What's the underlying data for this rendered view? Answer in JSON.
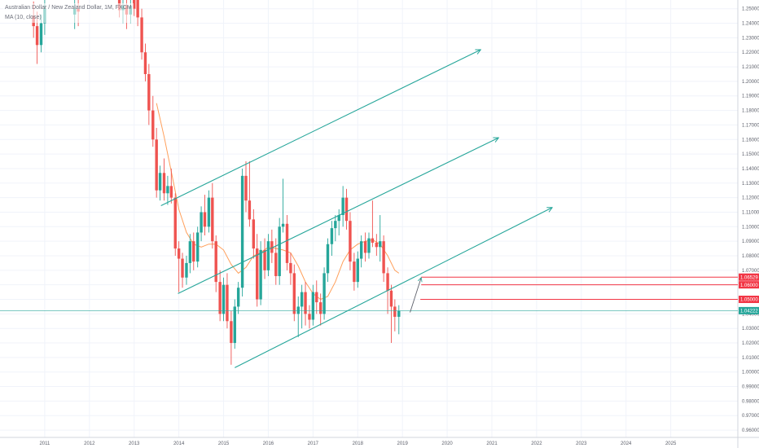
{
  "legend": {
    "symbol_line": "Australian Dollar / New Zealand Dollar, 1M, FXCM",
    "ma_line": "MA (10, close)"
  },
  "colors": {
    "up": "#26a69a",
    "down": "#ef5350",
    "ma": "#ff9f5a",
    "channel": "#26a69a",
    "last_price": "#26a69a",
    "level": "#f23645",
    "grid": "#f0f3fa",
    "axis_text": "#5d606b"
  },
  "chart_data": {
    "type": "candlestick",
    "title": "Australian Dollar / New Zealand Dollar, 1M, FXCM",
    "xlabel": "",
    "ylabel": "",
    "ylim": [
      0.955,
      1.256
    ],
    "xlim": [
      2010.0,
      2026.5
    ],
    "grid": true,
    "x_ticks": [
      2011,
      2012,
      2013,
      2014,
      2015,
      2016,
      2017,
      2018,
      2019,
      2020,
      2021,
      2022,
      2023,
      2024,
      2025
    ],
    "x_tick_labels": [
      "2011",
      "2012",
      "2013",
      "2014",
      "2015",
      "2016",
      "2017",
      "2018",
      "2019",
      "2020",
      "2021",
      "2022",
      "2023",
      "2024",
      "2025"
    ],
    "y_ticks": [
      0.96,
      0.97,
      0.98,
      0.99,
      1.0,
      1.01,
      1.02,
      1.03,
      1.04,
      1.05,
      1.06,
      1.07,
      1.08,
      1.09,
      1.1,
      1.11,
      1.12,
      1.13,
      1.14,
      1.15,
      1.16,
      1.17,
      1.18,
      1.19,
      1.2,
      1.21,
      1.22,
      1.23,
      1.24,
      1.25
    ],
    "y_tick_labels": [
      "0.96000",
      "0.97000",
      "0.98000",
      "0.99000",
      "1.00000",
      "1.01000",
      "1.02000",
      "1.03000",
      "1.04000",
      "1.05000",
      "1.06000",
      "1.07000",
      "1.08000",
      "1.09000",
      "1.10000",
      "1.11000",
      "1.12000",
      "1.13000",
      "1.14000",
      "1.15000",
      "1.16000",
      "1.17000",
      "1.18000",
      "1.19000",
      "1.20000",
      "1.21000",
      "1.22000",
      "1.23000",
      "1.24000",
      "1.25000"
    ],
    "candles": [
      {
        "t": 2010.75,
        "o": 1.245,
        "h": 1.255,
        "l": 1.23,
        "c": 1.238
      },
      {
        "t": 2010.83,
        "o": 1.238,
        "h": 1.248,
        "l": 1.212,
        "c": 1.225
      },
      {
        "t": 2010.92,
        "o": 1.225,
        "h": 1.246,
        "l": 1.22,
        "c": 1.24
      },
      {
        "t": 2011.0,
        "o": 1.24,
        "h": 1.256,
        "l": 1.232,
        "c": 1.25
      },
      {
        "t": 2011.67,
        "o": 1.246,
        "h": 1.256,
        "l": 1.236,
        "c": 1.25
      },
      {
        "t": 2011.75,
        "o": 1.25,
        "h": 1.256,
        "l": 1.238,
        "c": 1.248
      },
      {
        "t": 2012.67,
        "o": 1.256,
        "h": 1.256,
        "l": 1.244,
        "c": 1.249
      },
      {
        "t": 2012.75,
        "o": 1.249,
        "h": 1.256,
        "l": 1.24,
        "c": 1.252
      },
      {
        "t": 2012.83,
        "o": 1.252,
        "h": 1.256,
        "l": 1.236,
        "c": 1.246
      },
      {
        "t": 2012.92,
        "o": 1.246,
        "h": 1.256,
        "l": 1.24,
        "c": 1.252
      },
      {
        "t": 2013.0,
        "o": 1.256,
        "h": 1.256,
        "l": 1.245,
        "c": 1.25
      },
      {
        "t": 2013.08,
        "o": 1.256,
        "h": 1.256,
        "l": 1.238,
        "c": 1.244
      },
      {
        "t": 2013.17,
        "o": 1.244,
        "h": 1.25,
        "l": 1.215,
        "c": 1.22
      },
      {
        "t": 2013.25,
        "o": 1.22,
        "h": 1.226,
        "l": 1.2,
        "c": 1.205
      },
      {
        "t": 2013.33,
        "o": 1.205,
        "h": 1.212,
        "l": 1.17,
        "c": 1.18
      },
      {
        "t": 2013.42,
        "o": 1.18,
        "h": 1.19,
        "l": 1.155,
        "c": 1.16
      },
      {
        "t": 2013.5,
        "o": 1.16,
        "h": 1.168,
        "l": 1.12,
        "c": 1.125
      },
      {
        "t": 2013.58,
        "o": 1.125,
        "h": 1.142,
        "l": 1.118,
        "c": 1.137
      },
      {
        "t": 2013.67,
        "o": 1.137,
        "h": 1.147,
        "l": 1.118,
        "c": 1.123
      },
      {
        "t": 2013.75,
        "o": 1.123,
        "h": 1.135,
        "l": 1.115,
        "c": 1.128
      },
      {
        "t": 2013.83,
        "o": 1.128,
        "h": 1.14,
        "l": 1.116,
        "c": 1.12
      },
      {
        "t": 2013.92,
        "o": 1.12,
        "h": 1.123,
        "l": 1.08,
        "c": 1.085
      },
      {
        "t": 2014.0,
        "o": 1.085,
        "h": 1.09,
        "l": 1.055,
        "c": 1.078
      },
      {
        "t": 2014.08,
        "o": 1.078,
        "h": 1.082,
        "l": 1.058,
        "c": 1.065
      },
      {
        "t": 2014.17,
        "o": 1.065,
        "h": 1.08,
        "l": 1.06,
        "c": 1.075
      },
      {
        "t": 2014.25,
        "o": 1.075,
        "h": 1.095,
        "l": 1.068,
        "c": 1.09
      },
      {
        "t": 2014.33,
        "o": 1.09,
        "h": 1.096,
        "l": 1.07,
        "c": 1.076
      },
      {
        "t": 2014.42,
        "o": 1.076,
        "h": 1.1,
        "l": 1.072,
        "c": 1.096
      },
      {
        "t": 2014.5,
        "o": 1.096,
        "h": 1.114,
        "l": 1.09,
        "c": 1.11
      },
      {
        "t": 2014.58,
        "o": 1.11,
        "h": 1.122,
        "l": 1.094,
        "c": 1.1
      },
      {
        "t": 2014.67,
        "o": 1.1,
        "h": 1.125,
        "l": 1.096,
        "c": 1.12
      },
      {
        "t": 2014.75,
        "o": 1.12,
        "h": 1.13,
        "l": 1.085,
        "c": 1.09
      },
      {
        "t": 2014.83,
        "o": 1.09,
        "h": 1.094,
        "l": 1.055,
        "c": 1.062
      },
      {
        "t": 2014.92,
        "o": 1.062,
        "h": 1.07,
        "l": 1.035,
        "c": 1.04
      },
      {
        "t": 2015.0,
        "o": 1.04,
        "h": 1.065,
        "l": 1.035,
        "c": 1.06
      },
      {
        "t": 2015.08,
        "o": 1.06,
        "h": 1.068,
        "l": 1.03,
        "c": 1.035
      },
      {
        "t": 2015.17,
        "o": 1.035,
        "h": 1.042,
        "l": 1.005,
        "c": 1.02
      },
      {
        "t": 2015.25,
        "o": 1.02,
        "h": 1.05,
        "l": 1.016,
        "c": 1.045
      },
      {
        "t": 2015.33,
        "o": 1.045,
        "h": 1.062,
        "l": 1.04,
        "c": 1.058
      },
      {
        "t": 2015.42,
        "o": 1.058,
        "h": 1.14,
        "l": 1.052,
        "c": 1.135
      },
      {
        "t": 2015.5,
        "o": 1.135,
        "h": 1.145,
        "l": 1.11,
        "c": 1.118
      },
      {
        "t": 2015.58,
        "o": 1.118,
        "h": 1.145,
        "l": 1.1,
        "c": 1.105
      },
      {
        "t": 2015.67,
        "o": 1.105,
        "h": 1.112,
        "l": 1.078,
        "c": 1.085
      },
      {
        "t": 2015.75,
        "o": 1.085,
        "h": 1.095,
        "l": 1.045,
        "c": 1.05
      },
      {
        "t": 2015.83,
        "o": 1.05,
        "h": 1.09,
        "l": 1.046,
        "c": 1.084
      },
      {
        "t": 2015.92,
        "o": 1.084,
        "h": 1.092,
        "l": 1.064,
        "c": 1.07
      },
      {
        "t": 2016.0,
        "o": 1.07,
        "h": 1.095,
        "l": 1.066,
        "c": 1.09
      },
      {
        "t": 2016.08,
        "o": 1.09,
        "h": 1.098,
        "l": 1.075,
        "c": 1.082
      },
      {
        "t": 2016.17,
        "o": 1.082,
        "h": 1.092,
        "l": 1.06,
        "c": 1.066
      },
      {
        "t": 2016.25,
        "o": 1.066,
        "h": 1.106,
        "l": 1.06,
        "c": 1.1
      },
      {
        "t": 2016.33,
        "o": 1.1,
        "h": 1.133,
        "l": 1.096,
        "c": 1.102
      },
      {
        "t": 2016.42,
        "o": 1.102,
        "h": 1.108,
        "l": 1.07,
        "c": 1.075
      },
      {
        "t": 2016.5,
        "o": 1.075,
        "h": 1.082,
        "l": 1.06,
        "c": 1.068
      },
      {
        "t": 2016.58,
        "o": 1.068,
        "h": 1.074,
        "l": 1.035,
        "c": 1.04
      },
      {
        "t": 2016.67,
        "o": 1.04,
        "h": 1.052,
        "l": 1.024,
        "c": 1.045
      },
      {
        "t": 2016.75,
        "o": 1.045,
        "h": 1.06,
        "l": 1.03,
        "c": 1.055
      },
      {
        "t": 2016.83,
        "o": 1.055,
        "h": 1.062,
        "l": 1.032,
        "c": 1.04
      },
      {
        "t": 2016.92,
        "o": 1.04,
        "h": 1.046,
        "l": 1.03,
        "c": 1.036
      },
      {
        "t": 2017.0,
        "o": 1.036,
        "h": 1.06,
        "l": 1.032,
        "c": 1.055
      },
      {
        "t": 2017.08,
        "o": 1.055,
        "h": 1.063,
        "l": 1.04,
        "c": 1.048
      },
      {
        "t": 2017.17,
        "o": 1.048,
        "h": 1.054,
        "l": 1.032,
        "c": 1.04
      },
      {
        "t": 2017.25,
        "o": 1.04,
        "h": 1.072,
        "l": 1.036,
        "c": 1.068
      },
      {
        "t": 2017.33,
        "o": 1.068,
        "h": 1.092,
        "l": 1.062,
        "c": 1.088
      },
      {
        "t": 2017.42,
        "o": 1.088,
        "h": 1.104,
        "l": 1.08,
        "c": 1.099
      },
      {
        "t": 2017.5,
        "o": 1.099,
        "h": 1.108,
        "l": 1.09,
        "c": 1.104
      },
      {
        "t": 2017.58,
        "o": 1.104,
        "h": 1.112,
        "l": 1.094,
        "c": 1.108
      },
      {
        "t": 2017.67,
        "o": 1.108,
        "h": 1.128,
        "l": 1.1,
        "c": 1.12
      },
      {
        "t": 2017.75,
        "o": 1.12,
        "h": 1.126,
        "l": 1.098,
        "c": 1.104
      },
      {
        "t": 2017.83,
        "o": 1.104,
        "h": 1.11,
        "l": 1.07,
        "c": 1.076
      },
      {
        "t": 2017.92,
        "o": 1.076,
        "h": 1.082,
        "l": 1.056,
        "c": 1.062
      },
      {
        "t": 2018.0,
        "o": 1.062,
        "h": 1.083,
        "l": 1.058,
        "c": 1.078
      },
      {
        "t": 2018.08,
        "o": 1.078,
        "h": 1.094,
        "l": 1.072,
        "c": 1.09
      },
      {
        "t": 2018.17,
        "o": 1.09,
        "h": 1.096,
        "l": 1.076,
        "c": 1.082
      },
      {
        "t": 2018.25,
        "o": 1.082,
        "h": 1.096,
        "l": 1.078,
        "c": 1.092
      },
      {
        "t": 2018.33,
        "o": 1.092,
        "h": 1.118,
        "l": 1.086,
        "c": 1.089
      },
      {
        "t": 2018.42,
        "o": 1.089,
        "h": 1.095,
        "l": 1.08,
        "c": 1.086
      },
      {
        "t": 2018.5,
        "o": 1.086,
        "h": 1.108,
        "l": 1.076,
        "c": 1.09
      },
      {
        "t": 2018.58,
        "o": 1.09,
        "h": 1.094,
        "l": 1.062,
        "c": 1.068
      },
      {
        "t": 2018.67,
        "o": 1.068,
        "h": 1.072,
        "l": 1.04,
        "c": 1.056
      },
      {
        "t": 2018.75,
        "o": 1.056,
        "h": 1.06,
        "l": 1.02,
        "c": 1.045
      },
      {
        "t": 2018.83,
        "o": 1.045,
        "h": 1.05,
        "l": 1.028,
        "c": 1.038
      },
      {
        "t": 2018.92,
        "o": 1.038,
        "h": 1.046,
        "l": 1.026,
        "c": 1.042
      }
    ],
    "ma_series": {
      "name": "MA (10, close)",
      "t": [
        2013.5,
        2013.67,
        2013.83,
        2014.0,
        2014.17,
        2014.33,
        2014.5,
        2014.67,
        2014.83,
        2015.0,
        2015.17,
        2015.33,
        2015.5,
        2015.67,
        2015.83,
        2016.0,
        2016.17,
        2016.33,
        2016.5,
        2016.67,
        2016.83,
        2017.0,
        2017.17,
        2017.33,
        2017.5,
        2017.67,
        2017.83,
        2018.0,
        2018.17,
        2018.33,
        2018.5,
        2018.67,
        2018.83,
        2018.92
      ],
      "values": [
        1.185,
        1.162,
        1.138,
        1.112,
        1.096,
        1.088,
        1.086,
        1.088,
        1.088,
        1.084,
        1.074,
        1.068,
        1.072,
        1.08,
        1.082,
        1.086,
        1.085,
        1.084,
        1.082,
        1.073,
        1.062,
        1.054,
        1.05,
        1.052,
        1.062,
        1.076,
        1.084,
        1.088,
        1.09,
        1.091,
        1.088,
        1.08,
        1.07,
        1.068
      ]
    },
    "channel_lines": [
      {
        "name": "upper",
        "from": [
          2013.6,
          1.1145
        ],
        "to": [
          2020.75,
          1.2218
        ]
      },
      {
        "name": "middle",
        "from": [
          2013.98,
          1.054
        ],
        "to": [
          2021.15,
          1.1612
        ]
      },
      {
        "name": "lower",
        "from": [
          2015.25,
          1.003
        ],
        "to": [
          2022.35,
          1.1132
        ]
      }
    ],
    "projection_arrow": {
      "from": [
        2019.17,
        1.041
      ],
      "to": [
        2019.42,
        1.065
      ]
    },
    "price_levels": [
      {
        "value": 1.06529,
        "label": "1.06529",
        "from_t": 2019.42
      },
      {
        "value": 1.06,
        "label": "1.06000",
        "from_t": 2019.42
      },
      {
        "value": 1.05,
        "label": "1.05000",
        "from_t": 2019.4
      }
    ],
    "last_price": {
      "value": 1.04222,
      "label": "1.04222"
    }
  }
}
